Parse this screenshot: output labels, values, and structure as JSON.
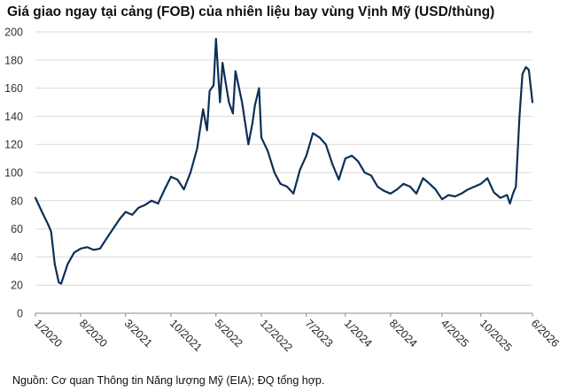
{
  "chart_data": {
    "type": "line",
    "title": "Giá giao ngay tại cảng (FOB) của nhiên liệu bay vùng Vịnh Mỹ (USD/thùng)",
    "xlabel": "",
    "ylabel": "",
    "ylim": [
      0,
      200
    ],
    "yticks": [
      0,
      20,
      40,
      60,
      80,
      100,
      120,
      140,
      160,
      180,
      200
    ],
    "grid": "horizontal",
    "line_color": "#0d2f55",
    "x_tick_labels": [
      "1/2020",
      "8/2020",
      "3/2021",
      "10/2021",
      "5/2022",
      "12/2022",
      "7/2023",
      "1/2024",
      "8/2024",
      "4/2025",
      "10/2025",
      "6/2026"
    ],
    "series": [
      {
        "x": [
          "2020-01",
          "2020-02",
          "2020-03",
          "2020-03-15",
          "2020-04",
          "2020-04-20",
          "2020-05",
          "2020-06",
          "2020-07",
          "2020-08",
          "2020-09",
          "2020-10",
          "2020-11",
          "2020-12",
          "2021-01",
          "2021-02",
          "2021-03",
          "2021-04",
          "2021-05",
          "2021-06",
          "2021-07",
          "2021-08",
          "2021-09",
          "2021-10",
          "2021-11",
          "2021-12",
          "2022-01",
          "2022-02",
          "2022-03",
          "2022-03-20",
          "2022-04",
          "2022-04-20",
          "2022-05",
          "2022-05-20",
          "2022-06",
          "2022-06-20",
          "2022-07",
          "2022-07-20",
          "2022-08",
          "2022-09",
          "2022-10",
          "2022-10-20",
          "2022-11",
          "2022-11-20",
          "2022-12",
          "2023-01",
          "2023-02",
          "2023-03",
          "2023-04",
          "2023-05",
          "2023-06",
          "2023-07",
          "2023-08",
          "2023-09",
          "2023-10",
          "2023-11",
          "2023-12",
          "2024-01",
          "2024-02",
          "2024-03",
          "2024-04",
          "2024-05",
          "2024-06",
          "2024-07",
          "2024-08",
          "2024-09",
          "2024-10",
          "2024-11",
          "2024-12",
          "2025-01",
          "2025-02",
          "2025-03",
          "2025-04",
          "2025-05",
          "2025-06",
          "2025-07",
          "2025-08",
          "2025-09",
          "2025-10",
          "2025-11",
          "2025-12",
          "2026-01",
          "2026-02",
          "2026-02-15",
          "2026-03",
          "2026-03-15",
          "2026-04",
          "2026-04-15",
          "2026-05",
          "2026-05-15",
          "2026-06"
        ],
        "y": [
          82,
          72,
          63,
          58,
          35,
          22,
          21,
          35,
          43,
          46,
          47,
          45,
          46,
          53,
          60,
          67,
          72,
          70,
          75,
          77,
          80,
          78,
          88,
          97,
          95,
          88,
          100,
          117,
          145,
          130,
          158,
          162,
          195,
          150,
          178,
          160,
          150,
          142,
          172,
          150,
          120,
          135,
          148,
          160,
          125,
          115,
          100,
          92,
          90,
          85,
          102,
          112,
          128,
          125,
          120,
          106,
          95,
          110,
          112,
          108,
          100,
          98,
          90,
          87,
          85,
          88,
          92,
          90,
          85,
          96,
          92,
          88,
          81,
          84,
          83,
          85,
          88,
          90,
          92,
          96,
          86,
          82,
          84,
          78,
          85,
          90,
          140,
          170,
          175,
          173,
          150
        ]
      }
    ]
  },
  "source_note": "Nguồn: Cơ quan Thông tin Năng lượng Mỹ (EIA); ĐQ tổng hợp."
}
